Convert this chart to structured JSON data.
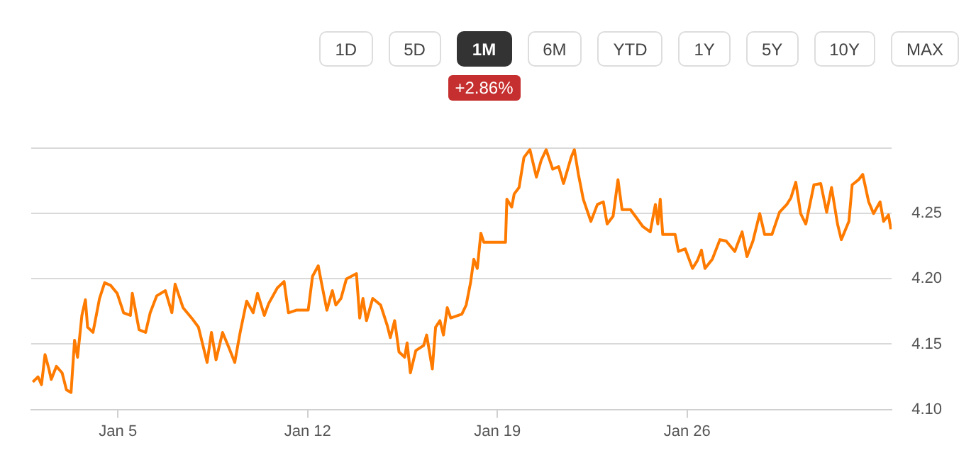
{
  "chart_data": {
    "type": "line",
    "annotations": [
      "1D",
      "5D",
      "1M",
      "6M",
      "YTD",
      "1Y",
      "5Y",
      "10Y",
      "MAX",
      "+2.86%"
    ],
    "xlim": [
      "--01-01T19:12",
      "--02-02T13:12"
    ],
    "xticks": [
      {
        "value": "--01-05",
        "label": "Jan 5"
      },
      {
        "value": "--01-12",
        "label": "Jan 12"
      },
      {
        "value": "--01-19",
        "label": "Jan 19"
      },
      {
        "value": "--01-26",
        "label": "Jan 26"
      }
    ],
    "ylim": [
      4.1,
      4.3
    ],
    "yticks": [
      {
        "value": 4.1,
        "label": "4.10"
      },
      {
        "value": 4.15,
        "label": "4.15"
      },
      {
        "value": 4.2,
        "label": "4.20"
      },
      {
        "value": 4.25,
        "label": "4.25"
      },
      {
        "value": 4.3,
        "label": null
      }
    ],
    "grid": "y",
    "legend": false,
    "marker": "none",
    "line_style": "solid",
    "series": [
      {
        "color": "#ff7b00",
        "x": [
          "--01-01T20:38",
          "--01-02T01:12",
          "--01-02T04:19",
          "--01-02T07:26",
          "--01-02T10:34",
          "--01-02T12:58",
          "--01-02T17:31",
          "--01-02T22:34",
          "--01-03T02:24",
          "--01-03T06:29",
          "--01-03T09:36",
          "--01-03T12:14",
          "--01-03T16:05",
          "--01-03T19:12",
          "--01-03T21:07",
          "--01-04T01:55",
          "--01-04T07:41",
          "--01-04T12:14",
          "--01-04T17:31",
          "--01-04T23:17",
          "--01-05T05:02",
          "--01-05T11:02",
          "--01-05T12:43",
          "--01-05T18:43",
          "--01-06T00:29",
          "--01-06T04:34",
          "--01-06T10:19",
          "--01-06T18:00",
          "--01-06T23:46",
          "--01-07T02:38",
          "--01-07T09:36",
          "--01-07T17:17",
          "--01-07T23:17",
          "--01-08T06:58",
          "--01-08T10:48",
          "--01-08T14:53",
          "--01-08T20:38",
          "--01-09T02:24",
          "--01-09T07:26",
          "--01-09T12:14",
          "--01-09T18:00",
          "--01-09T23:46",
          "--01-10T03:36",
          "--01-10T09:36",
          "--01-10T13:26",
          "--01-10T21:07",
          "--01-11T03:07",
          "--01-11T06:58",
          "--01-11T13:55",
          "--01-12T00:29",
          "--01-12T04:19",
          "--01-12T09:22",
          "--01-12T12:14",
          "--01-12T17:02",
          "--01-12T21:50",
          "--01-13T00:58",
          "--01-13T05:31",
          "--01-13T10:19",
          "--01-13T19:12",
          "--01-13T22:05",
          "--01-14T00:58",
          "--01-14T04:05",
          "--01-14T09:36",
          "--01-14T16:34",
          "--01-14T22:34",
          "--01-15T01:12",
          "--01-15T05:02",
          "--01-15T08:53",
          "--01-15T13:55",
          "--01-15T16:05",
          "--01-15T18:58",
          "--01-15T23:46",
          "--01-16T06:43",
          "--01-16T09:22",
          "--01-16T14:24",
          "--01-16T17:17",
          "--01-16T21:07",
          "--01-17T00:14",
          "--01-17T03:36",
          "--01-17T06:43",
          "--01-17T16:34",
          "--01-17T20:24",
          "--01-18T00:14",
          "--01-18T03:07",
          "--01-18T06:14",
          "--01-18T09:22",
          "--01-18T12:00",
          "--01-19T07:12",
          "--01-19T08:24",
          "--01-19T12:43",
          "--01-19T14:53",
          "--01-19T19:12",
          "--01-19T23:31",
          "--01-20T04:48",
          "--01-20T10:34",
          "--01-20T14:53",
          "--01-20T19:12",
          "--01-21T00:58",
          "--01-21T06:14",
          "--01-21T10:34",
          "--01-21T17:17",
          "--01-21T20:10",
          "--01-21T23:46",
          "--01-22T04:05",
          "--01-22T10:48",
          "--01-22T16:34",
          "--01-22T21:50",
          "--01-23T01:12",
          "--01-23T06:29",
          "--01-23T10:48",
          "--01-23T14:24",
          "--01-23T21:50",
          "--01-24T02:10",
          "--01-24T08:53",
          "--01-24T15:22",
          "--01-24T19:55",
          "--01-24T22:05",
          "--01-25T00:14",
          "--01-25T02:24",
          "--01-25T13:26",
          "--01-25T16:19",
          "--01-25T22:19",
          "--01-26T04:48",
          "--01-26T09:07",
          "--01-26T12:43",
          "--01-26T15:50",
          "--01-26T22:19",
          "--01-27T05:02",
          "--01-27T10:34",
          "--01-27T18:14",
          "--01-28T00:43",
          "--01-28T05:02",
          "--01-28T10:19",
          "--01-28T16:19",
          "--01-28T20:38",
          "--01-29T03:07",
          "--01-29T09:50",
          "--01-29T16:19",
          "--01-29T19:55",
          "--01-30T00:14",
          "--01-30T04:34",
          "--01-30T09:07",
          "--01-30T16:19",
          "--01-30T22:19",
          "--01-31T03:36",
          "--01-31T07:55",
          "--01-31T13:12",
          "--01-31T16:34",
          "--01-31T23:17",
          "--02-01T02:10",
          "--02-01T07:55",
          "--02-01T11:31",
          "--02-01T16:48",
          "--02-01T21:07",
          "--02-02T02:53",
          "--02-02T06:00",
          "--02-02T10:19",
          "--02-02T12:29"
        ],
        "values": [
          4.121,
          4.125,
          4.119,
          4.142,
          4.132,
          4.123,
          4.133,
          4.128,
          4.115,
          4.113,
          4.153,
          4.14,
          4.172,
          4.184,
          4.163,
          4.159,
          4.185,
          4.197,
          4.195,
          4.189,
          4.174,
          4.172,
          4.189,
          4.161,
          4.159,
          4.174,
          4.187,
          4.191,
          4.174,
          4.196,
          4.178,
          4.17,
          4.163,
          4.136,
          4.159,
          4.138,
          4.159,
          4.147,
          4.136,
          4.159,
          4.183,
          4.174,
          4.189,
          4.172,
          4.181,
          4.193,
          4.198,
          4.174,
          4.176,
          4.176,
          4.202,
          4.21,
          4.197,
          4.176,
          4.191,
          4.18,
          4.185,
          4.2,
          4.204,
          4.17,
          4.185,
          4.168,
          4.185,
          4.18,
          4.164,
          4.155,
          4.168,
          4.144,
          4.14,
          4.151,
          4.128,
          4.145,
          4.149,
          4.157,
          4.131,
          4.163,
          4.168,
          4.157,
          4.178,
          4.17,
          4.173,
          4.18,
          4.197,
          4.215,
          4.208,
          4.235,
          4.228,
          4.228,
          4.261,
          4.255,
          4.265,
          4.27,
          4.293,
          4.299,
          4.278,
          4.291,
          4.299,
          4.284,
          4.286,
          4.273,
          4.293,
          4.299,
          4.28,
          4.261,
          4.244,
          4.257,
          4.259,
          4.242,
          4.248,
          4.276,
          4.253,
          4.253,
          4.248,
          4.24,
          4.236,
          4.257,
          4.242,
          4.261,
          4.234,
          4.234,
          4.221,
          4.223,
          4.208,
          4.214,
          4.222,
          4.208,
          4.215,
          4.23,
          4.229,
          4.221,
          4.236,
          4.217,
          4.229,
          4.25,
          4.234,
          4.234,
          4.251,
          4.257,
          4.262,
          4.274,
          4.25,
          4.242,
          4.272,
          4.273,
          4.251,
          4.27,
          4.242,
          4.23,
          4.244,
          4.272,
          4.276,
          4.28,
          4.259,
          4.25,
          4.259,
          4.244,
          4.249,
          4.238
        ]
      }
    ]
  }
}
